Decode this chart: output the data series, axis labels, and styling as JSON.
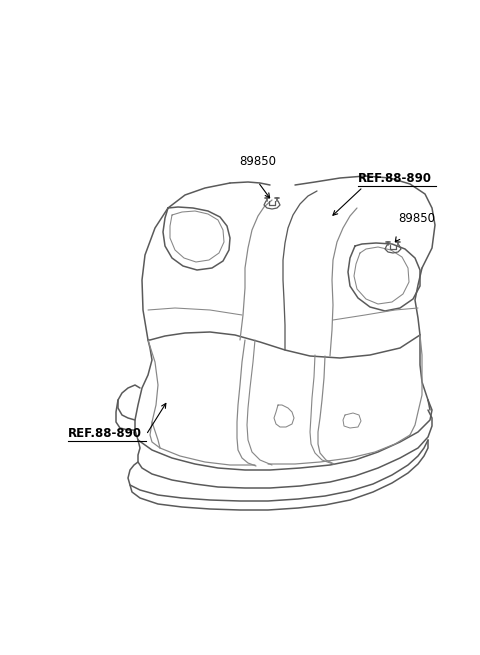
{
  "bg_color": "#ffffff",
  "line_color": "#5a5a5a",
  "line_color2": "#888888",
  "part_number_89850": "89850",
  "ref_label": "REF.88-890",
  "figsize": [
    4.8,
    6.55
  ],
  "dpi": 100
}
